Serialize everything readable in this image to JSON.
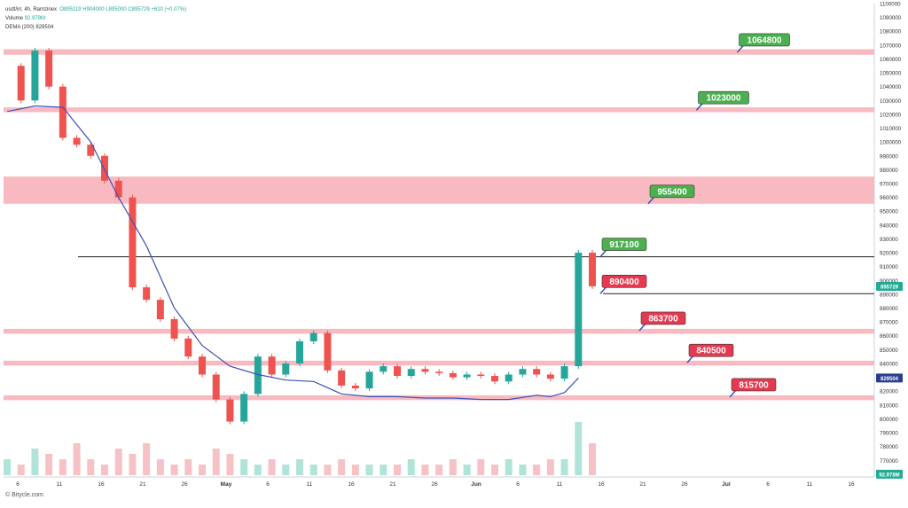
{
  "legend": {
    "symbol": "usdt/irr, 4h, Ramzinex",
    "ohlc": "O895119 H904000 L895000 C895729 +610 (+0.07%)",
    "volume_label": "Volume",
    "volume_value": "92.978M",
    "dema_label": "DEMA (200)",
    "dema_value": "829504"
  },
  "footer": "© Bitycle.com",
  "chart_data": {
    "type": "candlestick",
    "title": "usdt/irr, 4h, Ramzinex",
    "ylim": [
      758000,
      1100000
    ],
    "y_ticks": [
      1100000,
      1090000,
      1080000,
      1070000,
      1060000,
      1050000,
      1040000,
      1030000,
      1020000,
      1010000,
      1000000,
      990000,
      980000,
      970000,
      960000,
      950000,
      940000,
      930000,
      920000,
      910000,
      900000,
      890000,
      880000,
      870000,
      860000,
      850000,
      840000,
      830000,
      820000,
      810000,
      800000,
      790000,
      780000,
      770000,
      760000
    ],
    "x_ticks": [
      "6",
      "11",
      "16",
      "21",
      "26",
      "May",
      "6",
      "11",
      "16",
      "21",
      "26",
      "Jun",
      "6",
      "11",
      "16",
      "21",
      "26",
      "Jul",
      "6",
      "11",
      "16"
    ],
    "price_path": [
      [
        0,
        1055000
      ],
      [
        1,
        1030000
      ],
      [
        2,
        1066000
      ],
      [
        3,
        1040000
      ],
      [
        4,
        1003000
      ],
      [
        5,
        998000
      ],
      [
        6,
        990000
      ],
      [
        7,
        972000
      ],
      [
        8,
        960000
      ],
      [
        9,
        895000
      ],
      [
        10,
        886000
      ],
      [
        11,
        872000
      ],
      [
        12,
        858000
      ],
      [
        13,
        845000
      ],
      [
        14,
        832000
      ],
      [
        15,
        814000
      ],
      [
        16,
        798000
      ],
      [
        17,
        818000
      ],
      [
        18,
        845000
      ],
      [
        19,
        832000
      ],
      [
        20,
        840000
      ],
      [
        21,
        856000
      ],
      [
        22,
        862000
      ],
      [
        23,
        835000
      ],
      [
        24,
        824000
      ],
      [
        25,
        822000
      ],
      [
        26,
        834000
      ],
      [
        27,
        838000
      ],
      [
        28,
        831000
      ],
      [
        29,
        836000
      ],
      [
        30,
        834000
      ],
      [
        31,
        833000
      ],
      [
        32,
        830000
      ],
      [
        33,
        832000
      ],
      [
        34,
        831000
      ],
      [
        35,
        827000
      ],
      [
        36,
        832000
      ],
      [
        37,
        836000
      ],
      [
        38,
        832000
      ],
      [
        39,
        829000
      ],
      [
        40,
        838000
      ],
      [
        41,
        920000
      ],
      [
        42,
        895729
      ]
    ],
    "dema_path": [
      [
        0,
        1022000
      ],
      [
        2,
        1026000
      ],
      [
        4,
        1025000
      ],
      [
        6,
        1000000
      ],
      [
        8,
        960000
      ],
      [
        10,
        925000
      ],
      [
        12,
        880000
      ],
      [
        14,
        853000
      ],
      [
        16,
        838000
      ],
      [
        18,
        832000
      ],
      [
        20,
        828000
      ],
      [
        22,
        827000
      ],
      [
        24,
        818000
      ],
      [
        26,
        816000
      ],
      [
        28,
        816000
      ],
      [
        30,
        815000
      ],
      [
        32,
        815000
      ],
      [
        34,
        814000
      ],
      [
        36,
        814000
      ],
      [
        38,
        817000
      ],
      [
        39,
        816000
      ],
      [
        40,
        819000
      ],
      [
        41,
        829504
      ]
    ],
    "volume_scale": 92978000,
    "volumes": [
      0.3,
      0.2,
      0.5,
      0.4,
      0.3,
      0.6,
      0.3,
      0.2,
      0.5,
      0.4,
      0.6,
      0.3,
      0.2,
      0.3,
      0.2,
      0.5,
      0.4,
      0.3,
      0.2,
      0.3,
      0.2,
      0.3,
      0.2,
      0.2,
      0.3,
      0.2,
      0.2,
      0.2,
      0.2,
      0.3,
      0.2,
      0.2,
      0.3,
      0.2,
      0.3,
      0.2,
      0.3,
      0.2,
      0.2,
      0.3,
      0.3,
      1.0,
      0.6
    ],
    "zones": [
      {
        "label": "1064800",
        "price": 1064800,
        "top": 1067000,
        "bottom": 1063000,
        "label_color": "#4caf50"
      },
      {
        "label": "1023000",
        "price": 1023000,
        "top": 1025000,
        "bottom": 1021500,
        "label_color": "#4caf50"
      },
      {
        "label": "955400",
        "price": 955400,
        "top": 975000,
        "bottom": 955400,
        "label_color": "#4caf50"
      },
      {
        "label": "917100",
        "price": 917100,
        "top": 917100,
        "bottom": 917100,
        "label_color": "#4caf50"
      },
      {
        "label": "890400",
        "price": 890400,
        "top": 890400,
        "bottom": 890400,
        "label_color": "#e53950"
      },
      {
        "label": "863700",
        "price": 863700,
        "top": 865000,
        "bottom": 861500,
        "label_color": "#e53950"
      },
      {
        "label": "840500",
        "price": 840500,
        "top": 842000,
        "bottom": 838500,
        "label_color": "#e53950"
      },
      {
        "label": "815700",
        "price": 815700,
        "top": 817000,
        "bottom": 813500,
        "label_color": "#e53950"
      }
    ],
    "axis_markers": [
      {
        "text": "895729",
        "price": 895729,
        "color": "#22ab94"
      },
      {
        "text": "829504",
        "price": 829504,
        "color": "#2a3f8f"
      },
      {
        "text": "92.978M",
        "price": 760000,
        "color": "#22ab94"
      }
    ]
  }
}
